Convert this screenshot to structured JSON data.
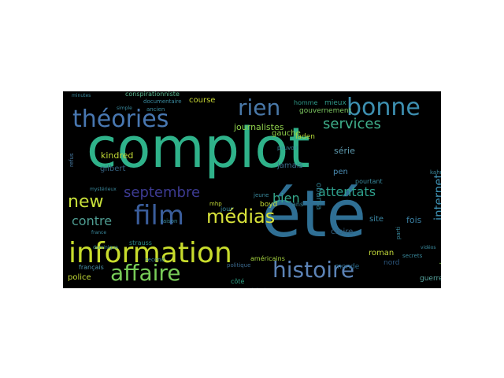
{
  "word_cloud": {
    "background": "#000000",
    "words": [
      {
        "text": "complot",
        "color": "#2fb28a"
      },
      {
        "text": "été",
        "color": "#2f6f94"
      },
      {
        "text": "information",
        "color": "#c8dc2c"
      },
      {
        "text": "histoire",
        "color": "#5c83b6"
      },
      {
        "text": "théories",
        "color": "#4877b1"
      },
      {
        "text": "bonne",
        "color": "#3d8fb0"
      },
      {
        "text": "affaire",
        "color": "#78cc58"
      },
      {
        "text": "film",
        "color": "#3a5d9b"
      },
      {
        "text": "médias",
        "color": "#d8e23a"
      },
      {
        "text": "rien",
        "color": "#4978a8"
      },
      {
        "text": "new",
        "color": "#c8e03a"
      },
      {
        "text": "services",
        "color": "#3faf8b"
      },
      {
        "text": "septembre",
        "color": "#3c3a91"
      },
      {
        "text": "attentats",
        "color": "#2e9f8c"
      },
      {
        "text": "contre",
        "color": "#4f9d92"
      },
      {
        "text": "bien",
        "color": "#34a78a"
      },
      {
        "text": "internet",
        "color": "#3d8fb0"
      },
      {
        "text": "journalistes",
        "color": "#8ed04b"
      },
      {
        "text": "gouvernement",
        "color": "#7dc860"
      },
      {
        "text": "mieux",
        "color": "#2f9888"
      },
      {
        "text": "homme",
        "color": "#2f9888"
      },
      {
        "text": "laden",
        "color": "#b4d838"
      },
      {
        "text": "gauche",
        "color": "#8fd04a"
      },
      {
        "text": "série",
        "color": "#5e9bb0"
      },
      {
        "text": "kindred",
        "color": "#c4db36"
      },
      {
        "text": "gilbert",
        "color": "#35607f"
      },
      {
        "text": "jamais",
        "color": "#3a6e8c"
      },
      {
        "text": "obama",
        "color": "#2f7b8c"
      },
      {
        "text": "pen",
        "color": "#4a8cb3"
      },
      {
        "text": "site",
        "color": "#3c8aa8"
      },
      {
        "text": "fois",
        "color": "#3a7fa2"
      },
      {
        "text": "croire",
        "color": "#34607e"
      },
      {
        "text": "roman",
        "color": "#c3d93a"
      },
      {
        "text": "nord",
        "color": "#2c567d"
      },
      {
        "text": "monde",
        "color": "#2a6a8a"
      },
      {
        "text": "york",
        "color": "#8ccd4d"
      },
      {
        "text": "guerre",
        "color": "#58a6a0"
      },
      {
        "text": "police",
        "color": "#c4db36"
      },
      {
        "text": "français",
        "color": "#4a90a8"
      },
      {
        "text": "côté",
        "color": "#2fa488"
      },
      {
        "text": "théorie",
        "color": "#3a7a9a"
      },
      {
        "text": "américains",
        "color": "#a8d640"
      },
      {
        "text": "politique",
        "color": "#3c6a8e"
      },
      {
        "text": "boyd",
        "color": "#c4db36"
      },
      {
        "text": "strauss",
        "color": "#2b8a88"
      },
      {
        "text": "course",
        "color": "#c8d834"
      },
      {
        "text": "conspirationniste",
        "color": "#5ab890"
      },
      {
        "text": "documentaire",
        "color": "#3a8a9e"
      },
      {
        "text": "ancien",
        "color": "#3a8a9e"
      },
      {
        "text": "simple",
        "color": "#3a8a9e"
      },
      {
        "text": "minutes",
        "color": "#3a8a9e"
      },
      {
        "text": "refus",
        "color": "#4a7fa8"
      },
      {
        "text": "mystérieux",
        "color": "#3a8a9e"
      },
      {
        "text": "france",
        "color": "#3a8a9e"
      },
      {
        "text": "devenir",
        "color": "#4a7fa8"
      },
      {
        "text": "dominique",
        "color": "#3a8a9e"
      },
      {
        "text": "second",
        "color": "#3a8a9e"
      },
      {
        "text": "raison",
        "color": "#3a8a9e"
      },
      {
        "text": "jour",
        "color": "#3a8a9e"
      },
      {
        "text": "jeune",
        "color": "#3a8a9e"
      },
      {
        "text": "ans",
        "color": "#3a8a9e"
      },
      {
        "text": "pourtant",
        "color": "#3a8a9e"
      },
      {
        "text": "kahn",
        "color": "#3a8a9e"
      },
      {
        "text": "secrets",
        "color": "#3a8a9e"
      },
      {
        "text": "mhp",
        "color": "#c4db36"
      },
      {
        "text": "pouvoir",
        "color": "#3a8a9e"
      },
      {
        "text": "vidéos",
        "color": "#3a8a9e"
      },
      {
        "text": "parti",
        "color": "#3a8a9e"
      },
      {
        "text": "dok",
        "color": "#3a8a9e"
      }
    ]
  }
}
